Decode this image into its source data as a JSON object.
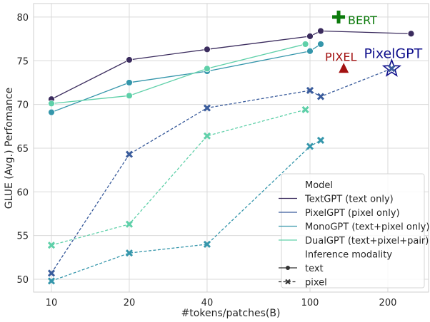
{
  "chart_data": {
    "type": "line",
    "xlabel": "#tokens/patches(B)",
    "ylabel": "GLUE (Avg.) Perfomance",
    "xscale": "log",
    "xlim": [
      8.5,
      280
    ],
    "ylim": [
      48.3,
      81.6
    ],
    "xticks": [
      10,
      20,
      40,
      100,
      200
    ],
    "xtick_labels": [
      "10",
      "20",
      "40",
      "100",
      "200"
    ],
    "yticks": [
      50,
      55,
      60,
      65,
      70,
      75,
      80
    ],
    "grid": true,
    "legend_position": "bottom-right",
    "legend": {
      "model_title": "Model",
      "models": [
        "TextGPT (text only)",
        "PixelGPT (pixel only)",
        "MonoGPT (text+pixel only)",
        "DualGPT (text+pixel+pair)"
      ],
      "modality_title": "Inference modality",
      "modalities": [
        "text",
        "pixel"
      ]
    },
    "colors": {
      "TextGPT": "#3b2c5e",
      "PixelGPT": "#3a5c9c",
      "MonoGPT": "#3596ab",
      "DualGPT": "#5fd0a9",
      "BERT": "#0b7a0b",
      "PIXEL": "#a31212",
      "PixelGPT_label": "#10108c"
    },
    "series": [
      {
        "model": "TextGPT",
        "modality": "text",
        "x": [
          10,
          20,
          40,
          100,
          110,
          246
        ],
        "y": [
          70.6,
          75.1,
          76.3,
          77.8,
          78.4,
          78.1
        ]
      },
      {
        "model": "PixelGPT",
        "modality": "pixel",
        "x": [
          10,
          20,
          40,
          100,
          110,
          207
        ],
        "y": [
          50.7,
          64.3,
          69.6,
          71.6,
          70.9,
          74.1
        ]
      },
      {
        "model": "MonoGPT",
        "modality": "text",
        "x": [
          10,
          20,
          40,
          100,
          110
        ],
        "y": [
          69.1,
          72.5,
          73.8,
          76.1,
          76.9
        ]
      },
      {
        "model": "MonoGPT",
        "modality": "pixel",
        "x": [
          10,
          20,
          40,
          100,
          110
        ],
        "y": [
          49.8,
          53.0,
          54.0,
          65.2,
          65.9
        ]
      },
      {
        "model": "DualGPT",
        "modality": "text",
        "x": [
          10,
          20,
          40,
          96
        ],
        "y": [
          70.1,
          71.0,
          74.1,
          76.9
        ]
      },
      {
        "model": "DualGPT",
        "modality": "pixel",
        "x": [
          10,
          20,
          40,
          96
        ],
        "y": [
          53.9,
          56.3,
          66.4,
          69.4
        ]
      }
    ],
    "annotations": [
      {
        "label": "BERT",
        "x": 129,
        "y": 80.0,
        "marker": "plus"
      },
      {
        "label": "PIXEL",
        "x": 135,
        "y": 74.1,
        "marker": "triangle"
      },
      {
        "label": "PixelGPT",
        "x": 207,
        "y": 74.1,
        "marker": "star"
      }
    ]
  }
}
